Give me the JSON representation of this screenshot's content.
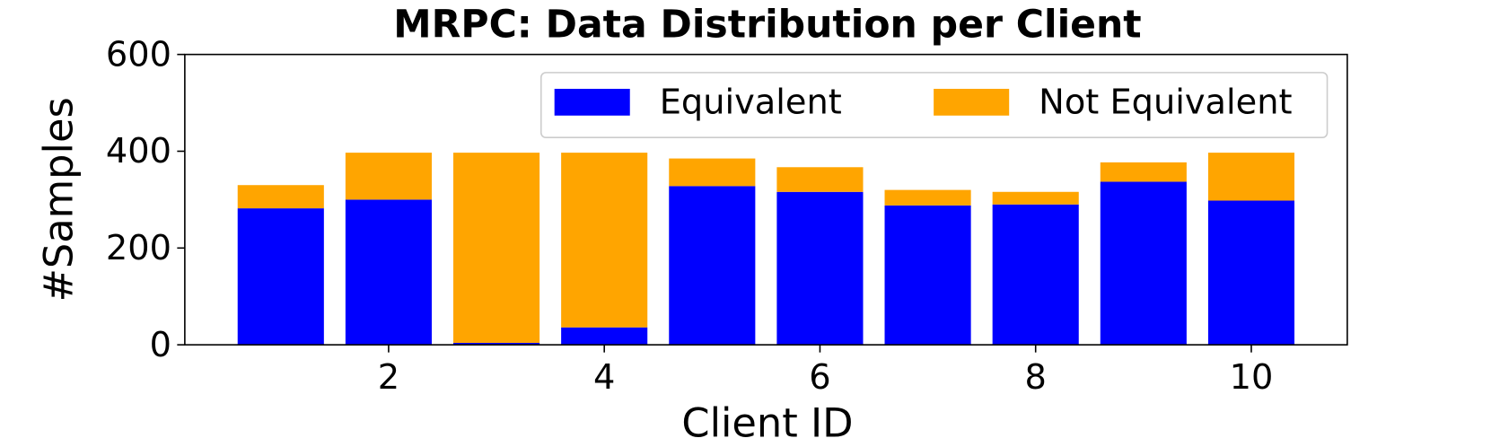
{
  "chart_data": {
    "type": "stacked-bar",
    "title": "MRPC: Data Distribution per Client",
    "x_label": "Client ID",
    "y_label": "#Samples",
    "x": [
      1,
      2,
      3,
      4,
      5,
      6,
      7,
      8,
      9,
      10
    ],
    "series": [
      {
        "name": "Equivalent",
        "color": "#0000ff",
        "values": [
          282,
          300,
          4,
          36,
          328,
          316,
          288,
          290,
          337,
          298
        ]
      },
      {
        "name": "Not Equivalent",
        "color": "#ffa500",
        "values": [
          48,
          97,
          393,
          361,
          57,
          51,
          32,
          26,
          40,
          99
        ]
      }
    ],
    "xlim": [
      0.11,
      10.89
    ],
    "xticks": [
      2,
      4,
      6,
      8,
      10
    ],
    "ylim": [
      0,
      600
    ],
    "yticks": [
      0,
      200,
      400,
      600
    ],
    "legend": "upper right"
  }
}
